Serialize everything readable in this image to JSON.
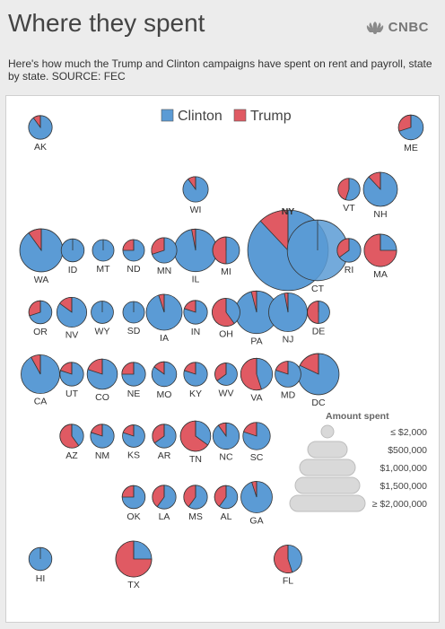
{
  "title": "Where they spent",
  "brand": "CNBC",
  "subtitle": "Here's how much the Trump and Clinton campaigns have spent on rent and payroll, state by state. SOURCE: FEC",
  "colors": {
    "clinton": "#5b9bd5",
    "trump": "#e05a63",
    "highlight": "#2f75bd"
  },
  "chart_data": {
    "type": "pie",
    "legend": [
      "Clinton",
      "Trump"
    ],
    "size_legend": {
      "title": "Amount spent",
      "labels": [
        "≤ $2,000",
        "$500,000",
        "$1,000,000",
        "$1,500,000",
        "≥ $2,000,000"
      ],
      "values": [
        2000,
        500000,
        1000000,
        1500000,
        2000000
      ]
    },
    "states": [
      {
        "state": "AK",
        "total": 90000,
        "trump_share": 0.1
      },
      {
        "state": "ME",
        "total": 110000,
        "trump_share": 0.3
      },
      {
        "state": "WI",
        "total": 120000,
        "trump_share": 0.1
      },
      {
        "state": "VT",
        "total": 65000,
        "trump_share": 0.45
      },
      {
        "state": "NH",
        "total": 340000,
        "trump_share": 0.12
      },
      {
        "state": "NY",
        "total": 3400000,
        "trump_share": 0.12
      },
      {
        "state": "WA",
        "total": 680000,
        "trump_share": 0.1
      },
      {
        "state": "ID",
        "total": 80000,
        "trump_share": 0.0
      },
      {
        "state": "MT",
        "total": 60000,
        "trump_share": 0.0
      },
      {
        "state": "ND",
        "total": 60000,
        "trump_share": 0.25
      },
      {
        "state": "MN",
        "total": 120000,
        "trump_share": 0.3
      },
      {
        "state": "IL",
        "total": 660000,
        "trump_share": 0.03
      },
      {
        "state": "MI",
        "total": 150000,
        "trump_share": 0.5
      },
      {
        "state": "CT",
        "total": 1700000,
        "trump_share": 0.0
      },
      {
        "state": "RI",
        "total": 90000,
        "trump_share": 0.35
      },
      {
        "state": "MA",
        "total": 290000,
        "trump_share": 0.75
      },
      {
        "state": "OR",
        "total": 80000,
        "trump_share": 0.3
      },
      {
        "state": "NV",
        "total": 220000,
        "trump_share": 0.15
      },
      {
        "state": "WY",
        "total": 70000,
        "trump_share": 0.0
      },
      {
        "state": "SD",
        "total": 60000,
        "trump_share": 0.0
      },
      {
        "state": "IA",
        "total": 400000,
        "trump_share": 0.05
      },
      {
        "state": "IN",
        "total": 90000,
        "trump_share": 0.2
      },
      {
        "state": "OH",
        "total": 170000,
        "trump_share": 0.6
      },
      {
        "state": "PA",
        "total": 660000,
        "trump_share": 0.04
      },
      {
        "state": "NJ",
        "total": 500000,
        "trump_share": 0.03
      },
      {
        "state": "DE",
        "total": 70000,
        "trump_share": 0.5
      },
      {
        "state": "CA",
        "total": 500000,
        "trump_share": 0.08
      },
      {
        "state": "UT",
        "total": 90000,
        "trump_share": 0.2
      },
      {
        "state": "CO",
        "total": 230000,
        "trump_share": 0.2
      },
      {
        "state": "NE",
        "total": 90000,
        "trump_share": 0.25
      },
      {
        "state": "MO",
        "total": 110000,
        "trump_share": 0.15
      },
      {
        "state": "KY",
        "total": 90000,
        "trump_share": 0.2
      },
      {
        "state": "WV",
        "total": 70000,
        "trump_share": 0.35
      },
      {
        "state": "VA",
        "total": 270000,
        "trump_share": 0.55
      },
      {
        "state": "MD",
        "total": 130000,
        "trump_share": 0.2
      },
      {
        "state": "DC",
        "total": 600000,
        "trump_share": 0.18
      },
      {
        "state": "AZ",
        "total": 90000,
        "trump_share": 0.6
      },
      {
        "state": "NM",
        "total": 90000,
        "trump_share": 0.2
      },
      {
        "state": "KS",
        "total": 70000,
        "trump_share": 0.2
      },
      {
        "state": "AR",
        "total": 90000,
        "trump_share": 0.35
      },
      {
        "state": "TN",
        "total": 230000,
        "trump_share": 0.65
      },
      {
        "state": "NC",
        "total": 140000,
        "trump_share": 0.1
      },
      {
        "state": "SC",
        "total": 160000,
        "trump_share": 0.2
      },
      {
        "state": "OK",
        "total": 80000,
        "trump_share": 0.25
      },
      {
        "state": "LA",
        "total": 90000,
        "trump_share": 0.4
      },
      {
        "state": "MS",
        "total": 90000,
        "trump_share": 0.4
      },
      {
        "state": "AL",
        "total": 80000,
        "trump_share": 0.4
      },
      {
        "state": "GA",
        "total": 260000,
        "trump_share": 0.05
      },
      {
        "state": "HI",
        "total": 80000,
        "trump_share": 0.0
      },
      {
        "state": "TX",
        "total": 400000,
        "trump_share": 0.75
      },
      {
        "state": "FL",
        "total": 170000,
        "trump_share": 0.55
      }
    ]
  }
}
